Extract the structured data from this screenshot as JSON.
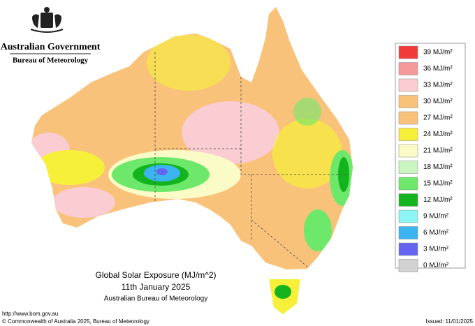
{
  "header": {
    "government": "Australian Government",
    "bureau": "Bureau of Meteorology"
  },
  "legend": [
    {
      "label": "39 MJ/m²",
      "color": "#f23a3a"
    },
    {
      "label": "36 MJ/m²",
      "color": "#f59a9a"
    },
    {
      "label": "33 MJ/m²",
      "color": "#f9cdd2"
    },
    {
      "label": "30 MJ/m²",
      "color": "#f9c27a"
    },
    {
      "label": "27 MJ/m²",
      "color": "#f9c27a"
    },
    {
      "label": "24 MJ/m²",
      "color": "#f7f03a"
    },
    {
      "label": "21 MJ/m²",
      "color": "#fbfbc8"
    },
    {
      "label": "18 MJ/m²",
      "color": "#c8f5c0"
    },
    {
      "label": "15 MJ/m²",
      "color": "#6ee86a"
    },
    {
      "label": "12 MJ/m²",
      "color": "#14b41e"
    },
    {
      "label": "9 MJ/m²",
      "color": "#8ef5f5"
    },
    {
      "label": "6 MJ/m²",
      "color": "#3cb4f0"
    },
    {
      "label": "3 MJ/m²",
      "color": "#6464f0"
    },
    {
      "label": "0 MJ/m²",
      "color": "#d2d2d2"
    }
  ],
  "caption": {
    "title": "Global Solar Exposure (MJ/m^2)",
    "date": "11th January 2025",
    "source": "Australian Bureau of Meteorology"
  },
  "footer": {
    "url": "http://www.bom.gov.au",
    "copyright": "© Commonwealth of Australia 2025, Bureau of Meteorology",
    "issued": "Issued: 11/01/2025"
  }
}
